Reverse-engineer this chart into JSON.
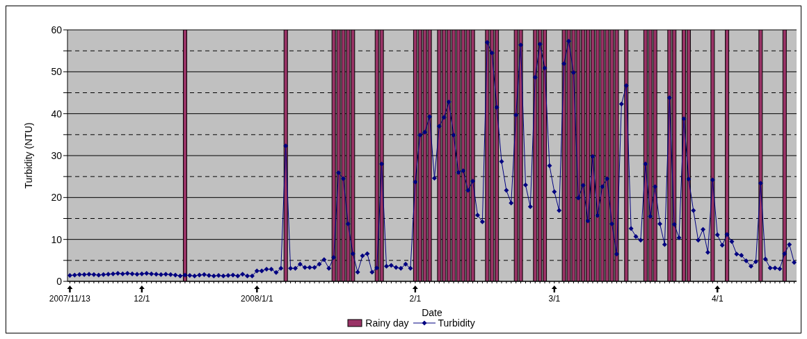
{
  "chart_data": {
    "type": "line",
    "xlabel": "Date",
    "ylabel": "Turbidity (NTU)",
    "categories": [
      "2007/11/13",
      null,
      null,
      null,
      null,
      null,
      null,
      null,
      null,
      null,
      null,
      null,
      null,
      null,
      null,
      "12/1",
      null,
      null,
      null,
      null,
      null,
      null,
      null,
      null,
      null,
      null,
      null,
      null,
      null,
      null,
      null,
      null,
      null,
      null,
      null,
      null,
      null,
      null,
      null,
      "2008/1/1",
      null,
      null,
      null,
      null,
      null,
      null,
      null,
      null,
      null,
      null,
      null,
      null,
      null,
      null,
      null,
      null,
      null,
      null,
      null,
      null,
      null,
      null,
      null,
      null,
      null,
      null,
      null,
      null,
      null,
      null,
      null,
      null,
      "2/1",
      null,
      null,
      null,
      null,
      null,
      null,
      null,
      null,
      null,
      null,
      null,
      null,
      null,
      null,
      null,
      null,
      null,
      null,
      null,
      null,
      null,
      null,
      null,
      null,
      null,
      null,
      null,
      null,
      "3/1",
      null,
      null,
      null,
      null,
      null,
      null,
      null,
      null,
      null,
      null,
      null,
      null,
      null,
      null,
      null,
      null,
      null,
      null,
      null,
      null,
      null,
      null,
      null,
      null,
      null,
      null,
      null,
      null,
      null,
      null,
      null,
      null,
      null,
      "4/1",
      null,
      null,
      null,
      null,
      null,
      null,
      null,
      null,
      null,
      null,
      null,
      null,
      null,
      null,
      null,
      null
    ],
    "series": [
      {
        "name": "Rainy day",
        "type": "bar",
        "color": "#993366",
        "values": [
          null,
          null,
          null,
          null,
          null,
          null,
          null,
          null,
          null,
          null,
          null,
          null,
          null,
          null,
          null,
          null,
          null,
          null,
          null,
          null,
          null,
          null,
          null,
          null,
          60,
          null,
          null,
          null,
          null,
          null,
          null,
          null,
          null,
          null,
          null,
          null,
          null,
          null,
          null,
          null,
          null,
          null,
          null,
          null,
          null,
          60,
          null,
          null,
          null,
          null,
          null,
          null,
          null,
          null,
          null,
          60,
          60,
          60,
          60,
          60,
          null,
          null,
          null,
          null,
          60,
          60,
          null,
          null,
          null,
          null,
          null,
          null,
          60,
          60,
          60,
          60,
          null,
          60,
          60,
          60,
          60,
          60,
          60,
          60,
          60,
          null,
          null,
          60,
          60,
          60,
          null,
          null,
          null,
          60,
          60,
          null,
          null,
          60,
          60,
          60,
          null,
          null,
          null,
          60,
          60,
          60,
          60,
          60,
          60,
          60,
          60,
          60,
          60,
          60,
          60,
          null,
          60,
          null,
          null,
          null,
          60,
          60,
          60,
          null,
          null,
          60,
          60,
          null,
          60,
          60,
          null,
          null,
          null,
          null,
          60,
          null,
          null,
          60,
          null,
          null,
          null,
          null,
          null,
          null,
          60,
          null,
          null,
          null,
          null,
          60,
          null,
          null
        ]
      },
      {
        "name": "Turbidity",
        "color": "#000080",
        "values": [
          1.4,
          1.5,
          1.6,
          1.6,
          1.7,
          1.6,
          1.5,
          1.6,
          1.7,
          1.8,
          1.9,
          1.8,
          1.9,
          1.8,
          1.7,
          1.8,
          1.9,
          1.8,
          1.7,
          1.6,
          1.7,
          1.6,
          1.5,
          1.3,
          1.5,
          1.4,
          1.3,
          1.5,
          1.6,
          1.4,
          1.3,
          1.4,
          1.3,
          1.4,
          1.5,
          1.3,
          1.7,
          1.3,
          1.3,
          2.5,
          2.5,
          2.9,
          2.9,
          2.1,
          3.1,
          32.3,
          3.1,
          3.1,
          4.1,
          3.3,
          3.3,
          3.3,
          4.1,
          5.2,
          3.1,
          5.7,
          25.9,
          24.5,
          13.7,
          6.6,
          2.2,
          6.1,
          6.6,
          2.2,
          3.2,
          28.0,
          3.6,
          3.8,
          3.3,
          3.1,
          4.1,
          3.1,
          23.7,
          34.9,
          35.6,
          39.3,
          24.6,
          37.0,
          39.1,
          42.8,
          34.9,
          26.0,
          26.4,
          21.7,
          23.9,
          15.8,
          14.2,
          57.0,
          54.5,
          41.5,
          28.6,
          21.7,
          18.7,
          39.7,
          56.4,
          23.0,
          17.8,
          48.7,
          56.6,
          50.9,
          27.6,
          21.4,
          16.9,
          51.9,
          57.3,
          49.8,
          19.9,
          22.9,
          14.4,
          29.8,
          15.7,
          22.6,
          24.5,
          13.7,
          6.5,
          42.3,
          46.7,
          12.6,
          10.7,
          9.8,
          28.0,
          15.5,
          22.6,
          13.7,
          8.8,
          43.8,
          13.6,
          10.4,
          38.8,
          24.4,
          16.9,
          9.8,
          12.4,
          6.9,
          24.2,
          11.1,
          8.6,
          11.2,
          9.5,
          6.5,
          6.2,
          4.9,
          3.6,
          4.7,
          23.4,
          5.3,
          3.2,
          3.2,
          3.0,
          6.6,
          8.8,
          4.5
        ]
      }
    ],
    "ylim": [
      0,
      60
    ],
    "yticks": [
      0,
      {
        "value": 5,
        "label": null
      },
      10,
      {
        "value": 15,
        "label": null
      },
      20,
      {
        "value": 25,
        "label": null
      },
      30,
      {
        "value": 35,
        "label": null
      },
      40,
      {
        "value": 45,
        "label": null
      },
      50,
      {
        "value": 55,
        "label": null
      },
      60
    ],
    "grid": "y",
    "marker": "diamond",
    "legend": "bottom"
  }
}
